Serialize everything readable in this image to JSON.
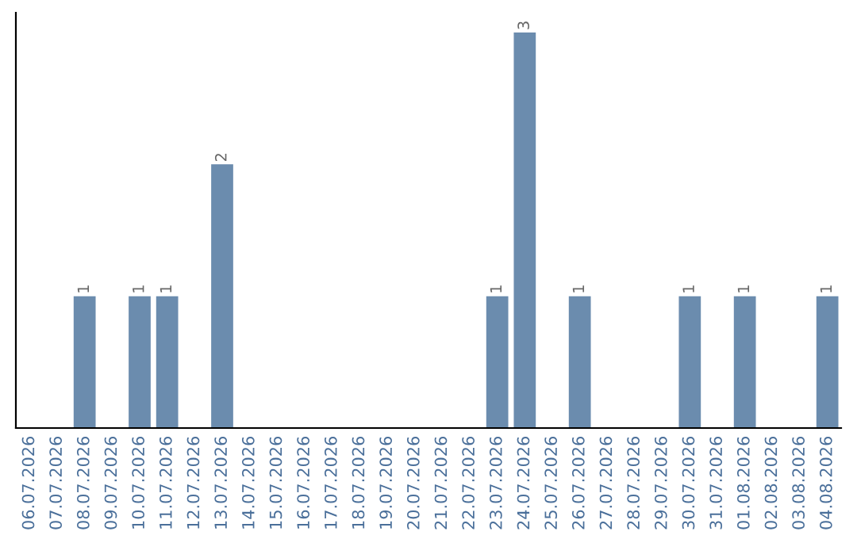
{
  "chart_data": {
    "type": "bar",
    "categories": [
      "06.07.2026",
      "07.07.2026",
      "08.07.2026",
      "09.07.2026",
      "10.07.2026",
      "11.07.2026",
      "12.07.2026",
      "13.07.2026",
      "14.07.2026",
      "15.07.2026",
      "16.07.2026",
      "17.07.2026",
      "18.07.2026",
      "19.07.2026",
      "20.07.2026",
      "21.07.2026",
      "22.07.2026",
      "23.07.2026",
      "24.07.2026",
      "25.07.2026",
      "26.07.2026",
      "27.07.2026",
      "28.07.2026",
      "29.07.2026",
      "30.07.2026",
      "31.07.2026",
      "01.08.2026",
      "02.08.2026",
      "03.08.2026",
      "04.08.2026"
    ],
    "values": [
      0,
      0,
      1,
      0,
      1,
      1,
      0,
      2,
      0,
      0,
      0,
      0,
      0,
      0,
      0,
      0,
      0,
      1,
      3,
      0,
      1,
      0,
      0,
      0,
      1,
      0,
      1,
      0,
      0,
      1
    ],
    "value_labels": [
      null,
      null,
      "1",
      null,
      "1",
      "1",
      null,
      "2",
      null,
      null,
      null,
      null,
      null,
      null,
      null,
      null,
      null,
      "1",
      "3",
      null,
      "1",
      null,
      null,
      null,
      "1",
      null,
      "1",
      null,
      null,
      "1"
    ],
    "color": "#6b8cae",
    "tick_labels": "x",
    "grid": false,
    "legend": false
  }
}
